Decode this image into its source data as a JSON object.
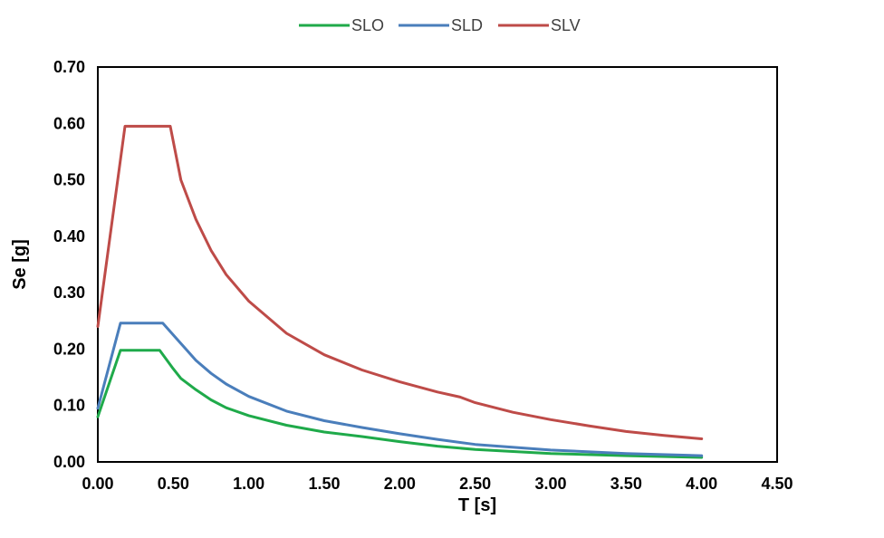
{
  "chart_data": {
    "type": "line",
    "title": "",
    "xlabel": "T [s]",
    "ylabel": "Se [g]",
    "xlim": [
      0,
      4.5
    ],
    "ylim": [
      0,
      0.7
    ],
    "x_ticks": [
      "0.00",
      "0.50",
      "1.00",
      "1.50",
      "2.00",
      "2.50",
      "3.00",
      "3.50",
      "4.00",
      "4.50"
    ],
    "y_ticks": [
      "0.00",
      "0.10",
      "0.20",
      "0.30",
      "0.40",
      "0.50",
      "0.60",
      "0.70"
    ],
    "grid": false,
    "legend_position": "top-center",
    "series": [
      {
        "name": "SLO",
        "color": "#1faa4a",
        "points": [
          [
            0,
            0.08
          ],
          [
            0.15,
            0.198
          ],
          [
            0.41,
            0.198
          ],
          [
            0.5,
            0.165
          ],
          [
            0.55,
            0.148
          ],
          [
            0.65,
            0.128
          ],
          [
            0.75,
            0.11
          ],
          [
            0.85,
            0.096
          ],
          [
            1.0,
            0.082
          ],
          [
            1.25,
            0.065
          ],
          [
            1.5,
            0.053
          ],
          [
            1.75,
            0.045
          ],
          [
            2.0,
            0.036
          ],
          [
            2.25,
            0.028
          ],
          [
            2.5,
            0.022
          ],
          [
            3.0,
            0.015
          ],
          [
            3.5,
            0.011
          ],
          [
            4.0,
            0.008
          ]
        ]
      },
      {
        "name": "SLD",
        "color": "#4a7ebb",
        "points": [
          [
            0,
            0.095
          ],
          [
            0.15,
            0.246
          ],
          [
            0.43,
            0.246
          ],
          [
            0.55,
            0.21
          ],
          [
            0.65,
            0.18
          ],
          [
            0.75,
            0.157
          ],
          [
            0.85,
            0.138
          ],
          [
            1.0,
            0.116
          ],
          [
            1.25,
            0.09
          ],
          [
            1.5,
            0.073
          ],
          [
            1.75,
            0.061
          ],
          [
            2.0,
            0.05
          ],
          [
            2.25,
            0.04
          ],
          [
            2.5,
            0.031
          ],
          [
            3.0,
            0.021
          ],
          [
            3.5,
            0.015
          ],
          [
            4.0,
            0.011
          ]
        ]
      },
      {
        "name": "SLV",
        "color": "#be4b48",
        "points": [
          [
            0,
            0.24
          ],
          [
            0.18,
            0.595
          ],
          [
            0.48,
            0.595
          ],
          [
            0.55,
            0.5
          ],
          [
            0.65,
            0.43
          ],
          [
            0.75,
            0.375
          ],
          [
            0.85,
            0.332
          ],
          [
            1.0,
            0.285
          ],
          [
            1.25,
            0.228
          ],
          [
            1.5,
            0.19
          ],
          [
            1.75,
            0.163
          ],
          [
            2.0,
            0.142
          ],
          [
            2.25,
            0.124
          ],
          [
            2.4,
            0.115
          ],
          [
            2.5,
            0.105
          ],
          [
            2.75,
            0.088
          ],
          [
            3.0,
            0.075
          ],
          [
            3.25,
            0.064
          ],
          [
            3.5,
            0.054
          ],
          [
            3.75,
            0.047
          ],
          [
            4.0,
            0.041
          ]
        ]
      }
    ]
  }
}
